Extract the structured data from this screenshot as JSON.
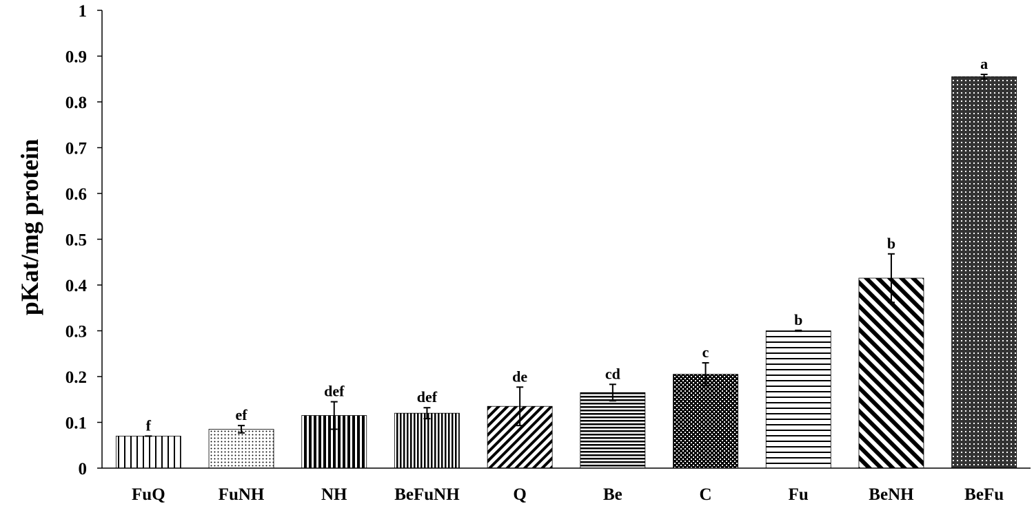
{
  "chart_data": {
    "type": "bar",
    "title": "",
    "xlabel": "",
    "ylabel": "pKat/mg protein",
    "ylim": [
      0,
      1
    ],
    "yticks": [
      0,
      0.1,
      0.2,
      0.3,
      0.4,
      0.5,
      0.6,
      0.7,
      0.8,
      0.9,
      1
    ],
    "ytick_labels": [
      "0",
      "0.1",
      "0.2",
      "0.3",
      "0.4",
      "0.5",
      "0.6",
      "0.7",
      "0.8",
      "0.9",
      "1"
    ],
    "grid": false,
    "categories": [
      "FuQ",
      "FuNH",
      "NH",
      "BeFuNH",
      "Q",
      "Be",
      "C",
      "Fu",
      "BeNH",
      "BeFu"
    ],
    "values": [
      0.07,
      0.085,
      0.115,
      0.12,
      0.135,
      0.165,
      0.205,
      0.3,
      0.415,
      0.855
    ],
    "errors": [
      0.0,
      0.008,
      0.03,
      0.012,
      0.042,
      0.018,
      0.025,
      0.001,
      0.053,
      0.005
    ],
    "significance": [
      "f",
      "ef",
      "def",
      "def",
      "de",
      "cd",
      "c",
      "b",
      "b",
      "a"
    ],
    "patterns": [
      "vlines-wide",
      "dots-fine",
      "vlines-bold",
      "vlines-dense",
      "diag-up",
      "hlines-dense",
      "checker",
      "hlines-wide",
      "diag-down-bold",
      "dots-grid"
    ]
  }
}
